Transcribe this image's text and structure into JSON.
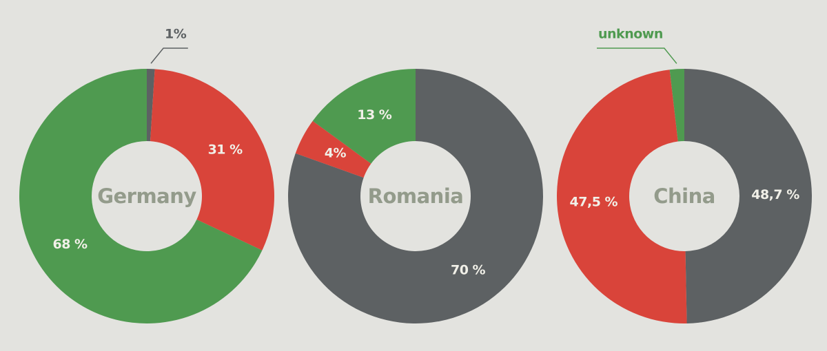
{
  "chart_data": [
    {
      "type": "donut",
      "label": "Germany",
      "colors": [
        "#5d6163",
        "#d9443a",
        "#4f9a50"
      ],
      "values": [
        1,
        31,
        68
      ],
      "value_labels": [
        "1%",
        "31 %",
        "68 %"
      ]
    },
    {
      "type": "donut",
      "label": "Romania",
      "colors": [
        "#5d6163",
        "#d9443a",
        "#4f9a50"
      ],
      "values": [
        70,
        4,
        13
      ],
      "value_labels": [
        "70 %",
        "4%",
        "13 %"
      ]
    },
    {
      "type": "donut",
      "label": "China",
      "colors": [
        "#5d6163",
        "#d9443a",
        "#4f9a50"
      ],
      "values": [
        48.7,
        47.5,
        1.8
      ],
      "value_labels": [
        "48,7 %",
        "47,5 %",
        null
      ],
      "callout": "unknown"
    }
  ]
}
